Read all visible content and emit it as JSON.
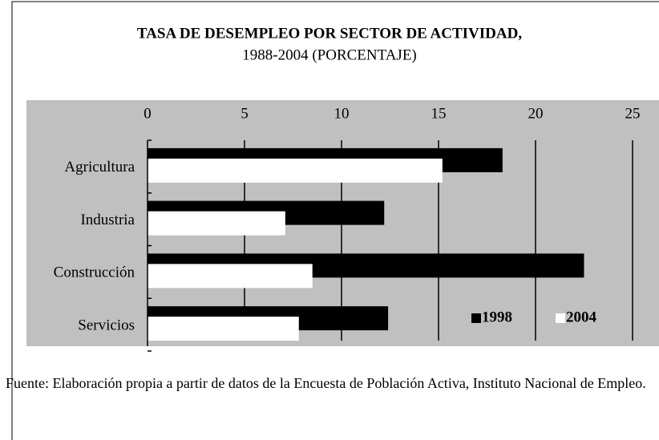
{
  "chart_data": {
    "type": "bar",
    "orientation": "horizontal",
    "title": "TASA DE DESEMPLEO POR SECTOR DE ACTIVIDAD,",
    "subtitle": "1988-2004 (PORCENTAJE)",
    "categories": [
      "Agricultura",
      "Industria",
      "Construcción",
      "Servicios"
    ],
    "series": [
      {
        "name": "1998",
        "color": "#000000",
        "values": [
          18.3,
          12.2,
          22.5,
          12.4
        ]
      },
      {
        "name": "2004",
        "color": "#ffffff",
        "values": [
          15.2,
          7.1,
          8.5,
          7.8
        ]
      }
    ],
    "xlim": [
      0,
      25
    ],
    "xticks": [
      0,
      5,
      10,
      15,
      20,
      25
    ],
    "grid": true,
    "legend": "lower right",
    "background": "#c0c0c0"
  },
  "footnote": "Fuente: Elaboración propia a partir de datos de la Encuesta de Población Activa, Instituto Nacional de Empleo."
}
